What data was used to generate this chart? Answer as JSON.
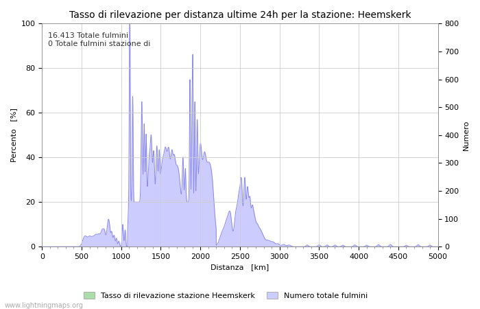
{
  "title": "Tasso di rilevazione per distanza ultime 24h per la stazione: Heemskerk",
  "xlabel": "Distanza   [km]",
  "ylabel_left": "Percento   [%]",
  "ylabel_right": "Numero",
  "annotation_line1": "16.413 Totale fulmini",
  "annotation_line2": "0 Totale fulmini stazione di",
  "xlim": [
    0,
    5000
  ],
  "ylim_left": [
    0,
    100
  ],
  "ylim_right": [
    0,
    800
  ],
  "xticks": [
    0,
    500,
    1000,
    1500,
    2000,
    2500,
    3000,
    3500,
    4000,
    4500,
    5000
  ],
  "yticks_left": [
    0,
    20,
    40,
    60,
    80,
    100
  ],
  "yticks_right": [
    0,
    100,
    200,
    300,
    400,
    500,
    600,
    700,
    800
  ],
  "legend_label_green": "Tasso di rilevazione stazione Heemskerk",
  "legend_label_blue": "Numero totale fulmini",
  "watermark": "www.lightningmaps.org",
  "bg_color": "#ffffff",
  "grid_color": "#cccccc",
  "line_color": "#8888ee",
  "fill_color_blue": "#ccccff",
  "fill_color_green": "#aaddaa",
  "title_fontsize": 10,
  "axis_fontsize": 8,
  "tick_fontsize": 8,
  "annotation_fontsize": 8
}
